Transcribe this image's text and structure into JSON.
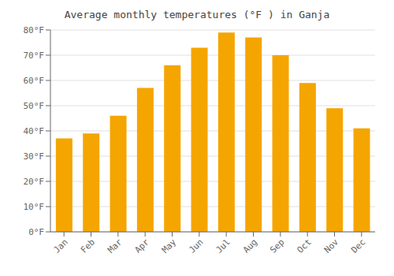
{
  "chart_data": {
    "type": "bar",
    "title": "Average monthly temperatures (°F ) in Ganja",
    "categories": [
      "Jan",
      "Feb",
      "Mar",
      "Apr",
      "May",
      "Jun",
      "Jul",
      "Aug",
      "Sep",
      "Oct",
      "Nov",
      "Dec"
    ],
    "values": [
      37,
      39,
      46,
      57,
      66,
      73,
      79,
      77,
      70,
      59,
      49,
      41
    ],
    "color": "#F5A500",
    "ylim": [
      0,
      80
    ],
    "yticks": [
      {
        "value": 0,
        "label": "0°F"
      },
      {
        "value": 10,
        "label": "10°F"
      },
      {
        "value": 20,
        "label": "20°F"
      },
      {
        "value": 30,
        "label": "30°F"
      },
      {
        "value": 40,
        "label": "40°F"
      },
      {
        "value": 50,
        "label": "50°F"
      },
      {
        "value": 60,
        "label": "60°F"
      },
      {
        "value": 70,
        "label": "70°F"
      },
      {
        "value": 80,
        "label": "80°F"
      }
    ],
    "grid": true
  }
}
